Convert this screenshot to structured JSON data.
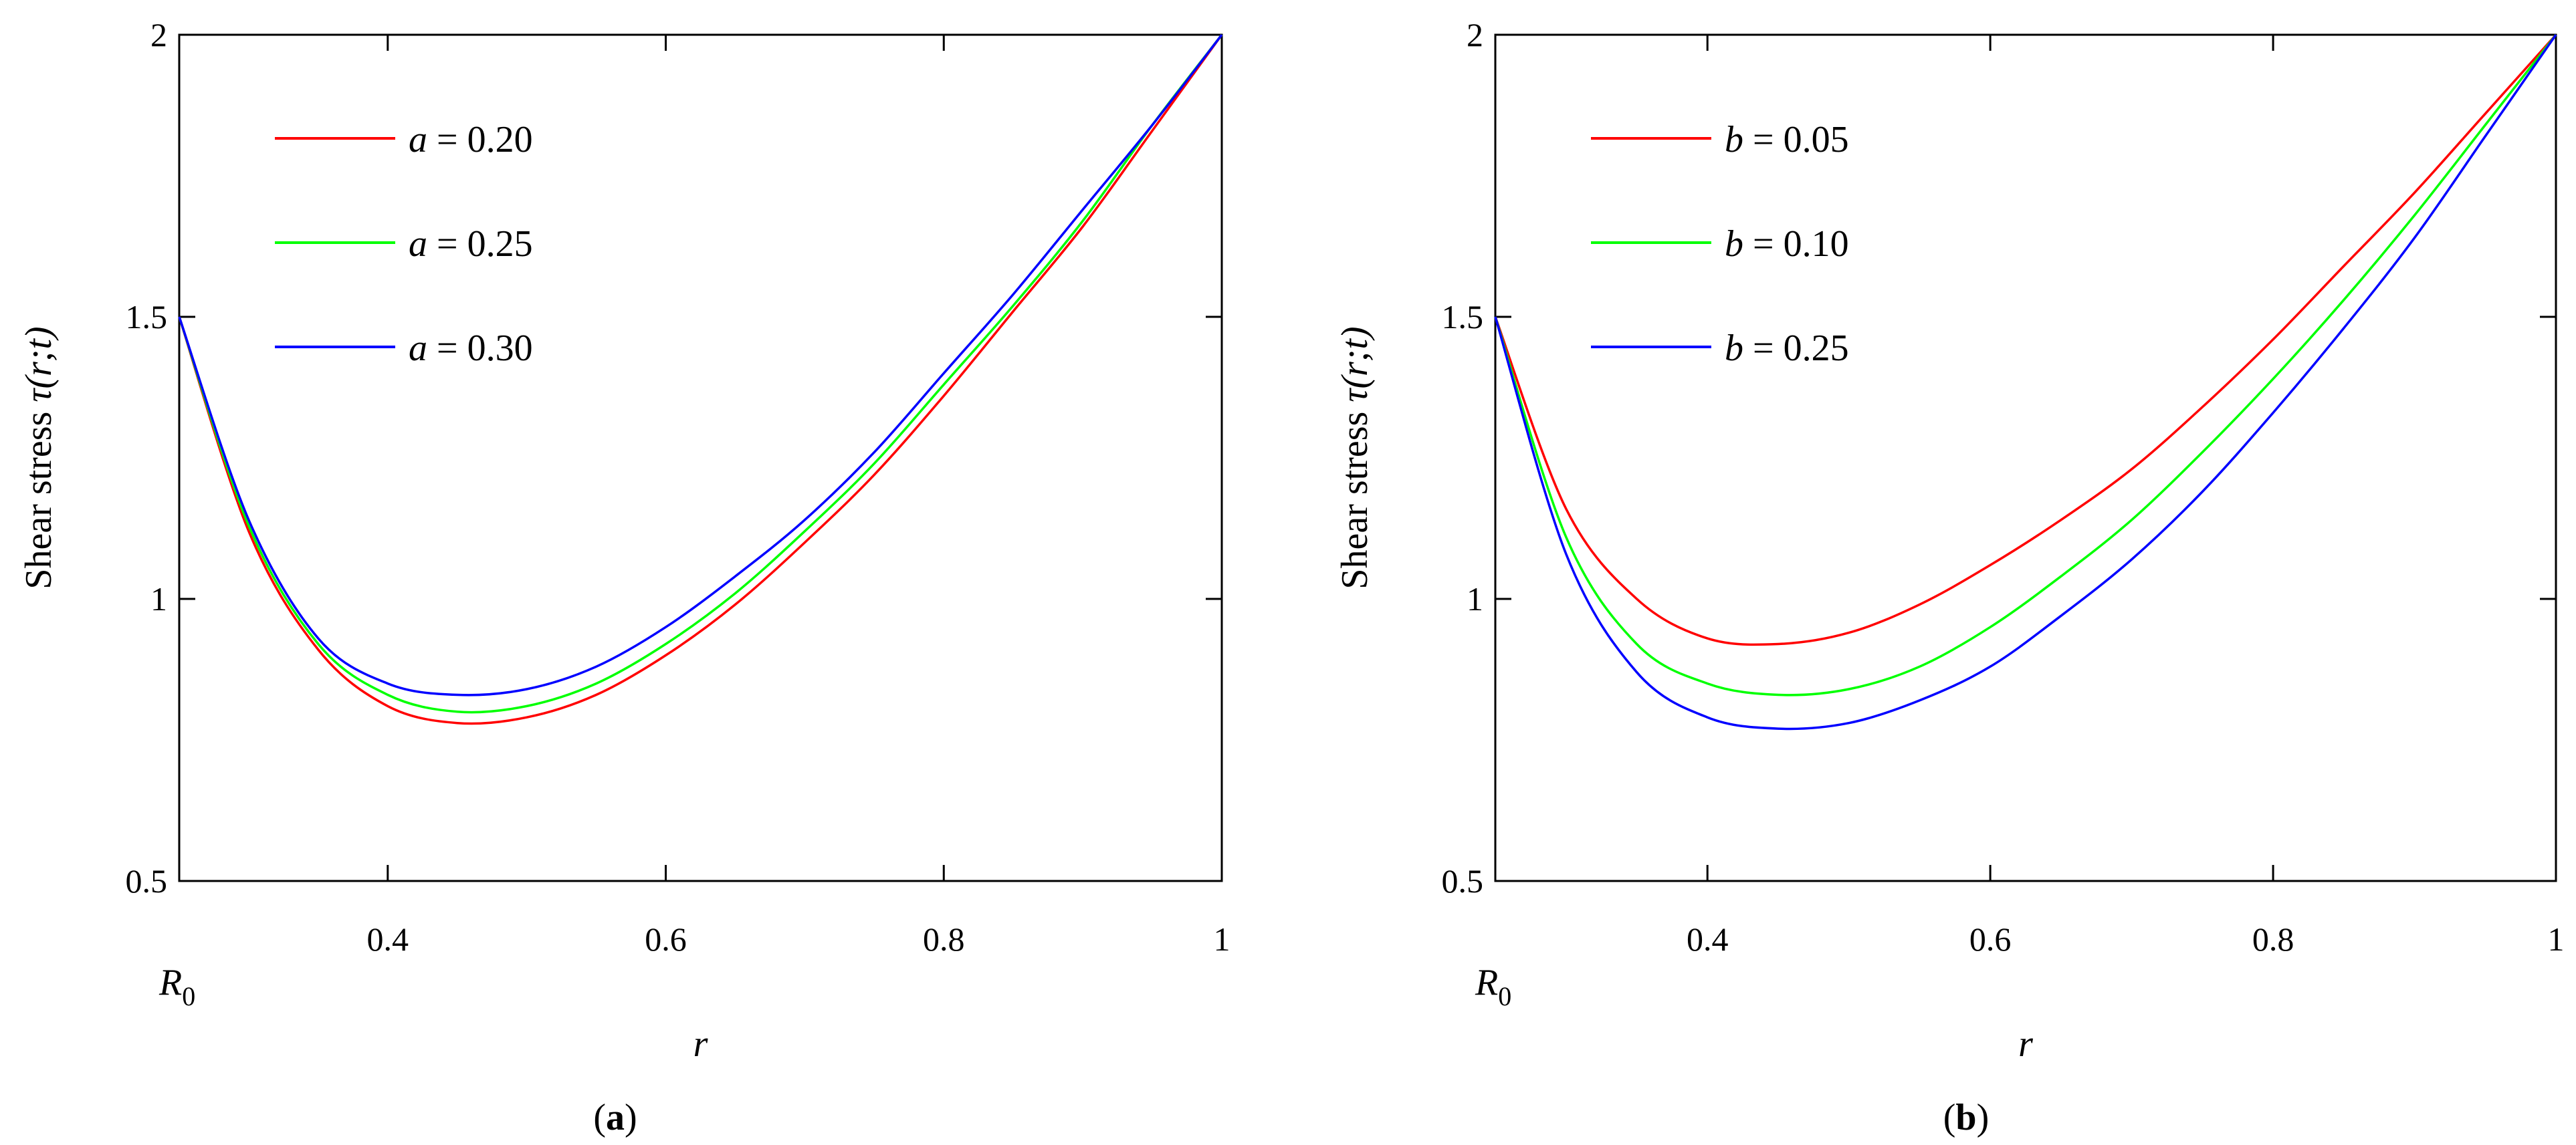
{
  "chart_data": [
    {
      "type": "line",
      "panel_label": "a",
      "xlabel": "r",
      "ylabel_text": "Shear stress",
      "ylabel_symbol": "τ",
      "ylabel_args": "(r;t)",
      "xlim": [
        0.25,
        1.0
      ],
      "ylim": [
        0.5,
        2.0
      ],
      "x_ticks": [
        0.4,
        0.6,
        0.8,
        1.0
      ],
      "x_tick_labels": [
        "0.4",
        "0.6",
        "0.8",
        "1"
      ],
      "y_ticks": [
        0.5,
        1.0,
        1.5,
        2.0
      ],
      "y_tick_labels": [
        "0.5",
        "1",
        "1.5",
        "2"
      ],
      "origin_label_main": "R",
      "origin_label_sub": "0",
      "legend_placement": "top-left",
      "series": [
        {
          "name": "a = 0.20",
          "var": "a",
          "eq": "= 0.20",
          "color": "#ff0000",
          "x": [
            0.25,
            0.3,
            0.35,
            0.4,
            0.45,
            0.5,
            0.55,
            0.6,
            0.65,
            0.7,
            0.75,
            0.8,
            0.85,
            0.9,
            0.95,
            1.0
          ],
          "y": [
            1.5,
            1.12,
            0.91,
            0.81,
            0.78,
            0.79,
            0.83,
            0.9,
            0.99,
            1.1,
            1.22,
            1.36,
            1.51,
            1.66,
            1.83,
            2.0
          ]
        },
        {
          "name": "a = 0.25",
          "var": "a",
          "eq": "= 0.25",
          "color": "#00ff00",
          "x": [
            0.25,
            0.3,
            0.35,
            0.4,
            0.45,
            0.5,
            0.55,
            0.6,
            0.65,
            0.7,
            0.75,
            0.8,
            0.85,
            0.9,
            0.95,
            1.0
          ],
          "y": [
            1.5,
            1.13,
            0.92,
            0.83,
            0.8,
            0.81,
            0.85,
            0.92,
            1.01,
            1.12,
            1.24,
            1.38,
            1.52,
            1.67,
            1.84,
            2.0
          ]
        },
        {
          "name": "a = 0.30",
          "var": "a",
          "eq": "= 0.30",
          "color": "#0000ff",
          "x": [
            0.25,
            0.3,
            0.35,
            0.4,
            0.45,
            0.5,
            0.55,
            0.6,
            0.65,
            0.7,
            0.75,
            0.8,
            0.85,
            0.9,
            0.95,
            1.0
          ],
          "y": [
            1.5,
            1.14,
            0.93,
            0.85,
            0.83,
            0.84,
            0.88,
            0.95,
            1.04,
            1.14,
            1.26,
            1.4,
            1.54,
            1.69,
            1.84,
            2.0
          ]
        }
      ]
    },
    {
      "type": "line",
      "panel_label": "b",
      "xlabel": "r",
      "ylabel_text": "Shear stress",
      "ylabel_symbol": "τ",
      "ylabel_args": "(r;t)",
      "xlim": [
        0.25,
        1.0
      ],
      "ylim": [
        0.5,
        2.0
      ],
      "x_ticks": [
        0.4,
        0.6,
        0.8,
        1.0
      ],
      "x_tick_labels": [
        "0.4",
        "0.6",
        "0.8",
        "1"
      ],
      "y_ticks": [
        0.5,
        1.0,
        1.5,
        2.0
      ],
      "y_tick_labels": [
        "0.5",
        "1",
        "1.5",
        "2"
      ],
      "origin_label_main": "R",
      "origin_label_sub": "0",
      "legend_placement": "top-left",
      "series": [
        {
          "name": "b = 0.05",
          "var": "b",
          "eq": "= 0.05",
          "color": "#ff0000",
          "x": [
            0.25,
            0.3,
            0.35,
            0.4,
            0.45,
            0.5,
            0.55,
            0.6,
            0.65,
            0.7,
            0.75,
            0.8,
            0.85,
            0.9,
            0.95,
            1.0
          ],
          "y": [
            1.5,
            1.16,
            1.0,
            0.93,
            0.92,
            0.94,
            0.99,
            1.06,
            1.14,
            1.23,
            1.34,
            1.46,
            1.59,
            1.72,
            1.86,
            2.0
          ]
        },
        {
          "name": "b = 0.10",
          "var": "b",
          "eq": "= 0.10",
          "color": "#00ff00",
          "x": [
            0.25,
            0.3,
            0.35,
            0.4,
            0.45,
            0.5,
            0.55,
            0.6,
            0.65,
            0.7,
            0.75,
            0.8,
            0.85,
            0.9,
            0.95,
            1.0
          ],
          "y": [
            1.5,
            1.11,
            0.92,
            0.85,
            0.83,
            0.84,
            0.88,
            0.95,
            1.04,
            1.14,
            1.26,
            1.39,
            1.53,
            1.68,
            1.84,
            2.0
          ]
        },
        {
          "name": "b = 0.25",
          "var": "b",
          "eq": "= 0.25",
          "color": "#0000ff",
          "x": [
            0.25,
            0.3,
            0.35,
            0.4,
            0.45,
            0.5,
            0.55,
            0.6,
            0.65,
            0.7,
            0.75,
            0.8,
            0.85,
            0.9,
            0.95,
            1.0
          ],
          "y": [
            1.5,
            1.08,
            0.87,
            0.79,
            0.77,
            0.78,
            0.82,
            0.88,
            0.97,
            1.07,
            1.19,
            1.33,
            1.48,
            1.64,
            1.82,
            2.0
          ]
        }
      ]
    }
  ]
}
